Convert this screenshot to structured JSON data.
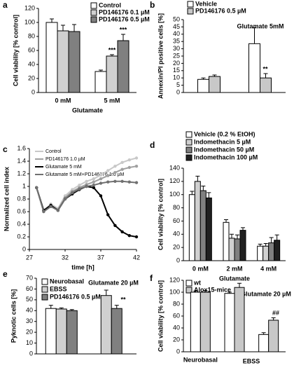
{
  "chart_data": [
    {
      "type": "bar",
      "panel_label": "a",
      "y_label": "Cell viability [% control]",
      "x_label": "Glutamate",
      "categories": [
        "0 mM",
        "5 mM"
      ],
      "series": [
        {
          "name": "Control",
          "color": "#ffffff",
          "values": [
            100,
            30
          ],
          "errors": [
            5,
            2
          ]
        },
        {
          "name": "PD146176 0.1 µM",
          "color": "#d0d0d0",
          "values": [
            88,
            52
          ],
          "errors": [
            8,
            2
          ]
        },
        {
          "name": "PD146176 0.5 µM",
          "color": "#808080",
          "values": [
            87,
            74
          ],
          "errors": [
            10,
            9
          ]
        }
      ],
      "ylim": [
        0,
        120
      ],
      "yticks": [
        0,
        20,
        40,
        60,
        80,
        100,
        120
      ],
      "annotations": [
        "***",
        "***"
      ]
    },
    {
      "type": "bar",
      "panel_label": "b",
      "y_label": "Annexin/PI positive cells [%]",
      "categories": [
        null,
        null
      ],
      "series": [
        {
          "name": "Vehicle",
          "color": "#ffffff",
          "values": [
            9,
            33.5
          ],
          "errors": [
            1,
            11
          ]
        },
        {
          "name": "PD146176 0.5 µM",
          "color": "#c8c8c8",
          "values": [
            11,
            10
          ],
          "errors": [
            1,
            3
          ]
        }
      ],
      "ylim": [
        0,
        50
      ],
      "yticks": [
        0,
        5,
        10,
        15,
        20,
        25,
        30,
        35,
        40,
        45,
        50
      ],
      "annotations": [
        "Glutamate 5mM",
        "**"
      ]
    },
    {
      "type": "line",
      "panel_label": "c",
      "y_label": "Normalized cell index",
      "x_label": "time [h]",
      "x": [
        28,
        29,
        30,
        31,
        32,
        33,
        34,
        35,
        36,
        37,
        38,
        39,
        40,
        41,
        42
      ],
      "series": [
        {
          "name": "Control",
          "color": "#c8c8c8",
          "values": [
            0.98,
            0.62,
            0.72,
            0.65,
            0.85,
            0.95,
            1.02,
            1.08,
            1.12,
            1.18,
            1.25,
            1.32,
            1.38,
            1.42,
            1.45
          ]
        },
        {
          "name": "PD146176 1.0 µM",
          "color": "#a0a0a0",
          "values": [
            0.98,
            0.6,
            0.7,
            0.63,
            0.82,
            0.92,
            0.98,
            1.03,
            1.07,
            1.12,
            1.17,
            1.22,
            1.27,
            1.3,
            1.32
          ]
        },
        {
          "name": "Glutamate 5 mM",
          "color": "#000000",
          "values": [
            0.98,
            0.62,
            0.7,
            0.62,
            0.8,
            0.88,
            0.95,
            1.0,
            0.98,
            0.85,
            0.55,
            0.38,
            0.28,
            0.22,
            0.2
          ]
        },
        {
          "name": "Glutamate 5 mM+PD146176 1.0 µM",
          "color": "#707070",
          "values": [
            0.98,
            0.6,
            0.68,
            0.62,
            0.8,
            0.9,
            0.96,
            1.0,
            1.02,
            1.05,
            1.07,
            1.08,
            1.08,
            1.07,
            1.06
          ]
        }
      ],
      "xlim": [
        27,
        42
      ],
      "xticks": [
        27,
        32,
        37,
        42
      ],
      "ylim": [
        0,
        1.6
      ],
      "yticks": [
        0,
        0.2,
        0.4,
        0.6,
        0.8,
        1,
        1.2,
        1.4,
        1.6
      ]
    },
    {
      "type": "bar",
      "panel_label": "d",
      "y_label": "Cell viability [% control]",
      "x_label": "Glutamate",
      "categories": [
        "0 mM",
        "2 mM",
        "4 mM"
      ],
      "series": [
        {
          "name": "Vehicle (0.2 % EtOH)",
          "color": "#ffffff",
          "values": [
            100,
            58,
            22
          ],
          "errors": [
            5,
            4,
            3
          ]
        },
        {
          "name": "Indomethacin 5 µM",
          "color": "#d0d0d0",
          "values": [
            120,
            34,
            22
          ],
          "errors": [
            8,
            6,
            4
          ]
        },
        {
          "name": "Indomethacin 50 µM",
          "color": "#808080",
          "values": [
            106,
            33,
            27
          ],
          "errors": [
            7,
            6,
            8
          ]
        },
        {
          "name": "Indomethacin 100 µM",
          "color": "#202020",
          "values": [
            95,
            46,
            31
          ],
          "errors": [
            8,
            4,
            8
          ]
        }
      ],
      "ylim": [
        0,
        140
      ],
      "yticks": [
        0,
        20,
        40,
        60,
        80,
        100,
        120,
        140
      ]
    },
    {
      "type": "bar",
      "panel_label": "e",
      "y_label": "Pyknotic cells [%]",
      "categories": [
        null,
        null
      ],
      "series": [
        {
          "name": "Neurobasal",
          "color": "#ffffff",
          "values": [
            42,
            null
          ],
          "errors": [
            3,
            null
          ]
        },
        {
          "name": "EBSS",
          "color": "#d0d0d0",
          "values": [
            41.5,
            54
          ],
          "errors": [
            1,
            5
          ]
        },
        {
          "name": "PD146176 0.5 µM",
          "color": "#808080",
          "values": [
            40,
            42
          ],
          "errors": [
            1,
            3
          ]
        }
      ],
      "ylim": [
        0,
        70
      ],
      "yticks": [
        0,
        10,
        20,
        30,
        40,
        50,
        60,
        70
      ],
      "annotations": [
        "Glutamate 20 µM",
        "**"
      ]
    },
    {
      "type": "bar",
      "panel_label": "f",
      "y_label": "Cell viability [% control]",
      "categories": [
        "Neurobasal",
        null,
        null
      ],
      "series": [
        {
          "name": "wt",
          "color": "#ffffff",
          "values": [
            100,
            98,
            29
          ],
          "errors": [
            2,
            2,
            3
          ]
        },
        {
          "name": "Alox15-mice",
          "color": "#c8c8c8",
          "values": [
            100,
            108,
            53
          ],
          "errors": [
            3,
            7,
            4
          ]
        }
      ],
      "ylim": [
        0,
        120
      ],
      "yticks": [
        0,
        20,
        40,
        60,
        80,
        100,
        120
      ],
      "annotations": [
        "Glutamate 20 µM",
        "##",
        "EBSS"
      ]
    }
  ]
}
